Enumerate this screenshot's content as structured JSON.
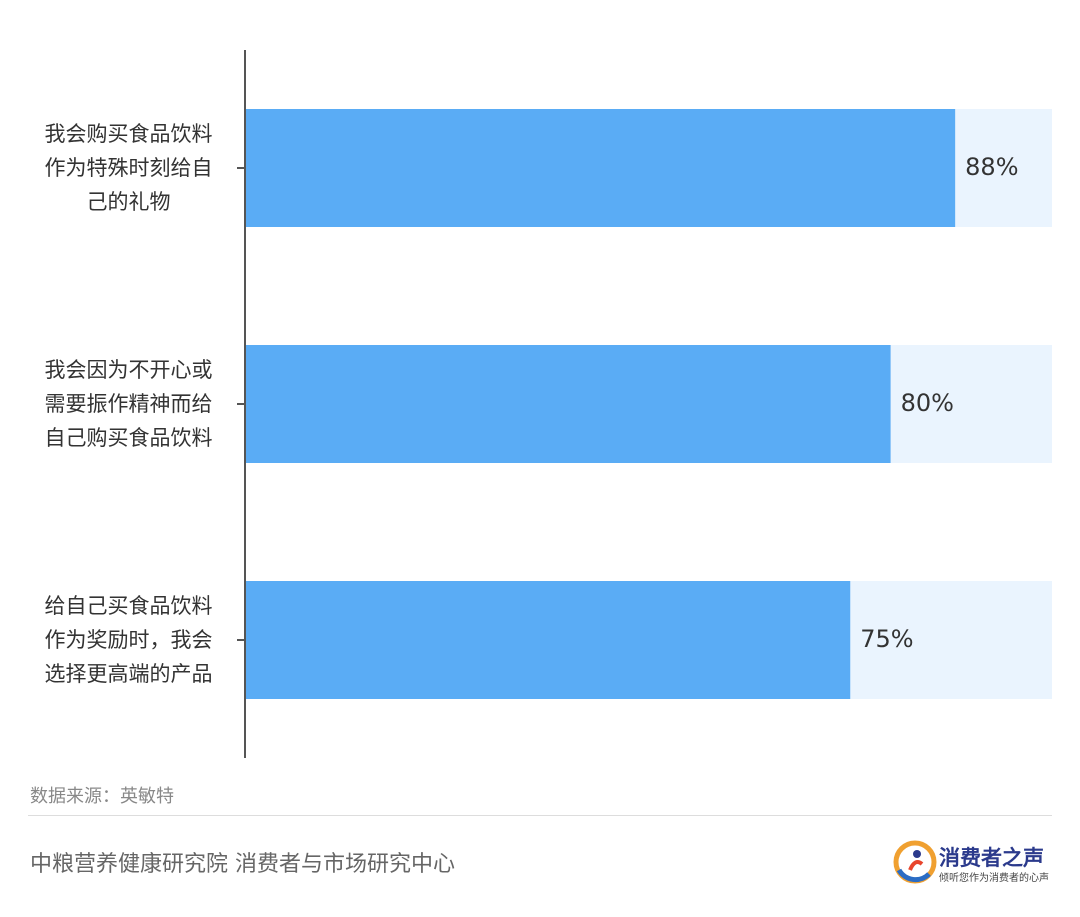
{
  "chart_data": {
    "type": "bar",
    "orientation": "horizontal",
    "categories": [
      [
        "我会购买食品饮料",
        "作为特殊时刻给自",
        "己的礼物"
      ],
      [
        "我会因为不开心或",
        "需要振作精神而给",
        "自己购买食品饮料"
      ],
      [
        "给自己买食品饮料",
        "作为奖励时，我会",
        "选择更高端的产品"
      ]
    ],
    "values": [
      88,
      80,
      75
    ],
    "value_labels": [
      "88%",
      "80%",
      "75%"
    ],
    "xlim": [
      0,
      100
    ],
    "colors": {
      "bar": "#5aacf5",
      "track": "#eaf4fe",
      "axis": "#555555",
      "text": "#333333"
    }
  },
  "source": "数据来源：英敏特",
  "footer": {
    "org": "中粮营养健康研究院 消费者与市场研究中心",
    "logo_title": "消费者之声",
    "logo_subtitle": "倾听您作为消费者的心声"
  }
}
